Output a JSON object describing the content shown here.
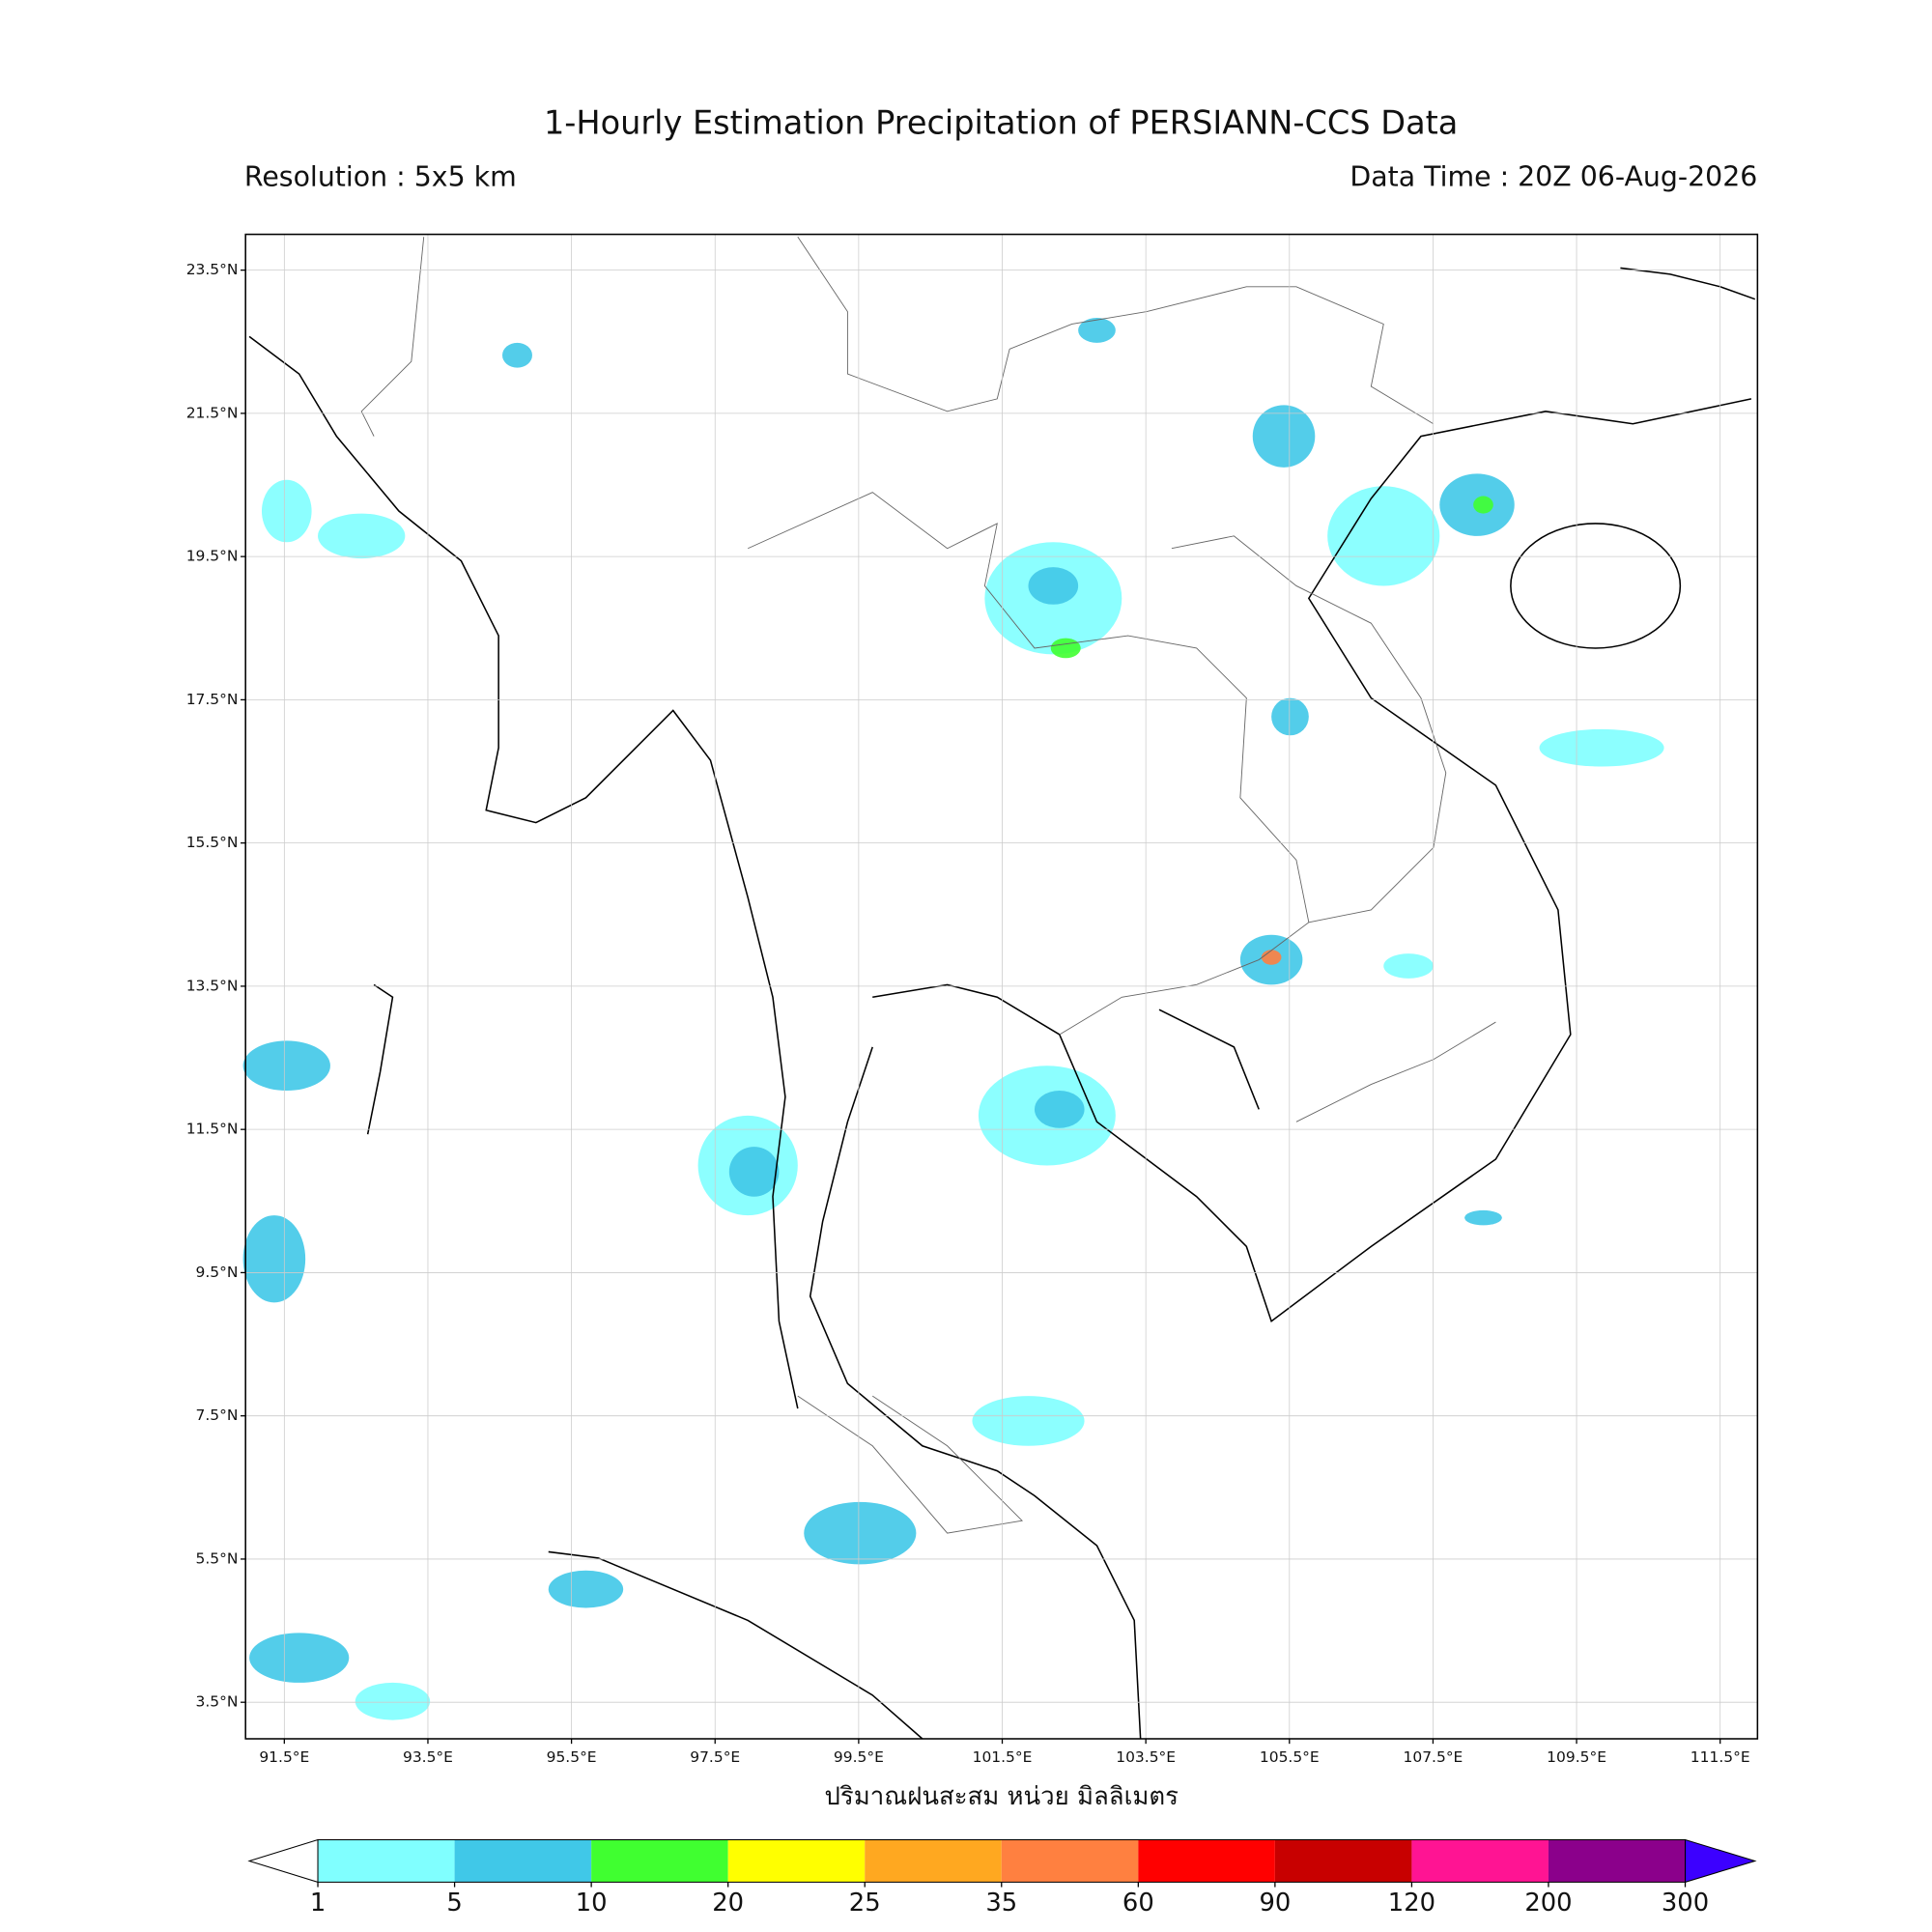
{
  "title": "1-Hourly Estimation Precipitation of PERSIANN-CCS Data",
  "resolution": "Resolution : 5x5 km",
  "data_time": "Data Time : 20Z 06-Aug-2026",
  "map": {
    "xlim": [
      90.96,
      112.02
    ],
    "ylim": [
      2.99,
      24.0
    ],
    "grid": true,
    "xticks": [
      {
        "value": 91.5,
        "label": "91.5°E"
      },
      {
        "value": 93.5,
        "label": "93.5°E"
      },
      {
        "value": 95.5,
        "label": "95.5°E"
      },
      {
        "value": 97.5,
        "label": "97.5°E"
      },
      {
        "value": 99.5,
        "label": "99.5°E"
      },
      {
        "value": 101.5,
        "label": "101.5°E"
      },
      {
        "value": 103.5,
        "label": "103.5°E"
      },
      {
        "value": 105.5,
        "label": "105.5°E"
      },
      {
        "value": 107.5,
        "label": "107.5°E"
      },
      {
        "value": 109.5,
        "label": "109.5°E"
      },
      {
        "value": 111.5,
        "label": "111.5°E"
      }
    ],
    "yticks": [
      {
        "value": 3.5,
        "label": "3.5°N"
      },
      {
        "value": 5.5,
        "label": "5.5°N"
      },
      {
        "value": 7.5,
        "label": "7.5°N"
      },
      {
        "value": 9.5,
        "label": "9.5°N"
      },
      {
        "value": 11.5,
        "label": "11.5°N"
      },
      {
        "value": 13.5,
        "label": "13.5°N"
      },
      {
        "value": 15.5,
        "label": "15.5°N"
      },
      {
        "value": 17.5,
        "label": "17.5°N"
      },
      {
        "value": 19.5,
        "label": "19.5°N"
      },
      {
        "value": 21.5,
        "label": "21.5°N"
      },
      {
        "value": 23.5,
        "label": "23.5°N"
      }
    ],
    "xlabel": "ปริมาณฝนสะสม หน่วย มิลลิเมตร"
  },
  "colorbar": {
    "bounds": [
      1,
      5,
      10,
      20,
      25,
      35,
      60,
      90,
      120,
      200,
      300
    ],
    "colors": [
      "#80ffff",
      "#40c8e8",
      "#40ff30",
      "#ffff00",
      "#ffa820",
      "#ff8040",
      "#ff0000",
      "#c80000",
      "#ff1493",
      "#8b008b"
    ],
    "under": "#ffffff",
    "over": "#3c00ff"
  }
}
